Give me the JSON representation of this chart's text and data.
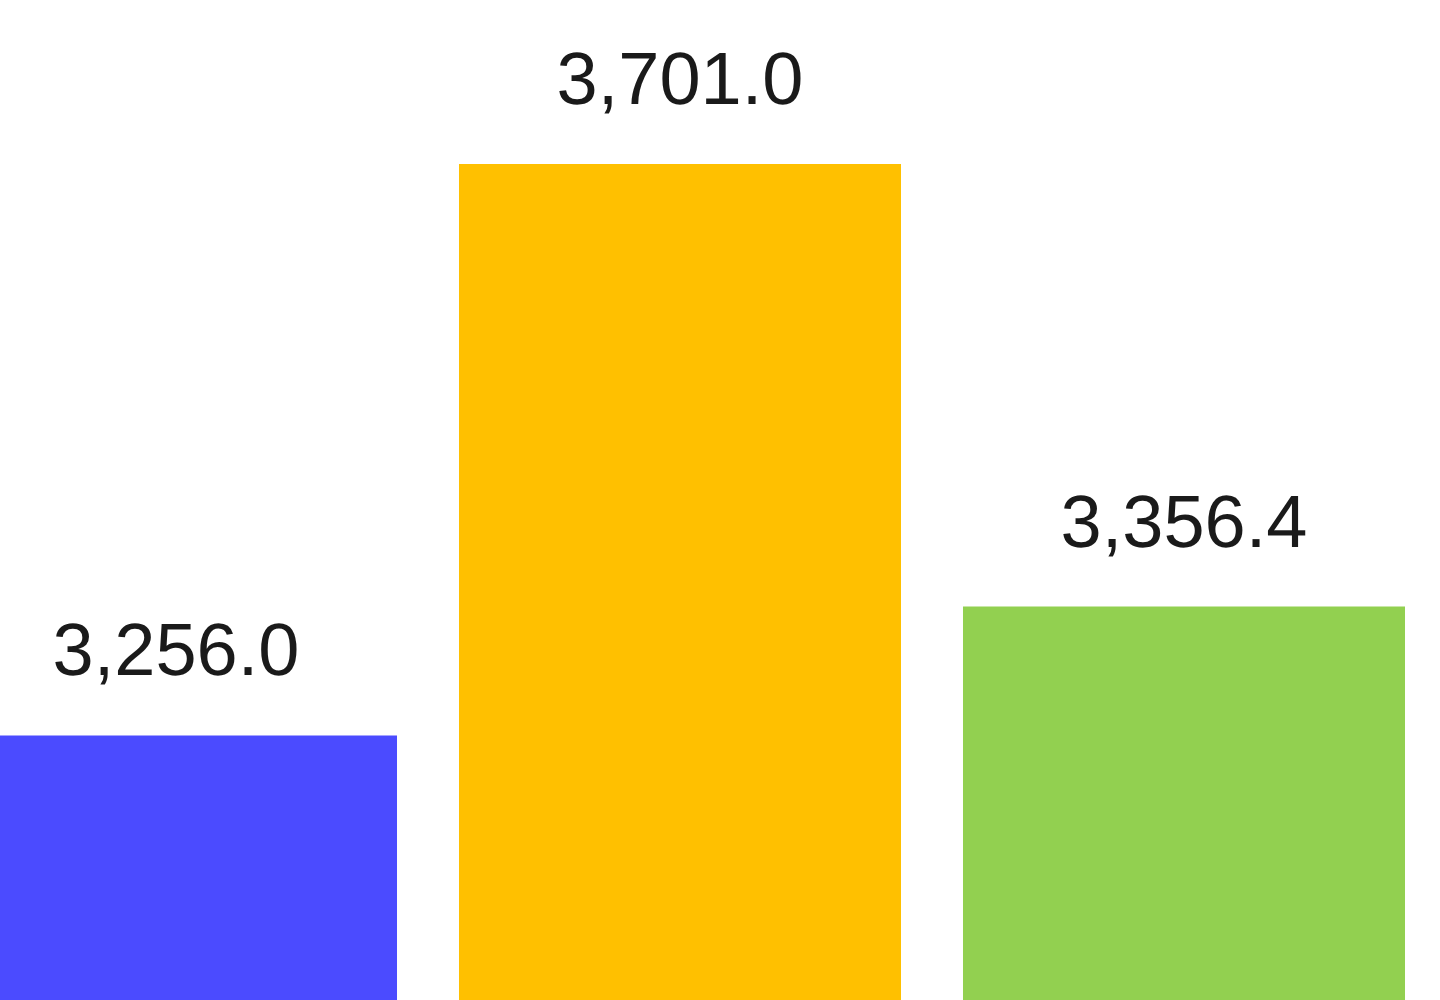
{
  "chart_data": {
    "type": "bar",
    "categories": [
      null,
      null,
      null
    ],
    "values": [
      3256.0,
      3701.0,
      3356.4
    ],
    "colors": [
      "#4b4bff",
      "#ffc000",
      "#92d050"
    ],
    "value_labels": [
      "3,256.0",
      "3,701.0",
      "3,356.4"
    ],
    "ylim": [
      3050,
      3701
    ],
    "tick_labels": false
  }
}
